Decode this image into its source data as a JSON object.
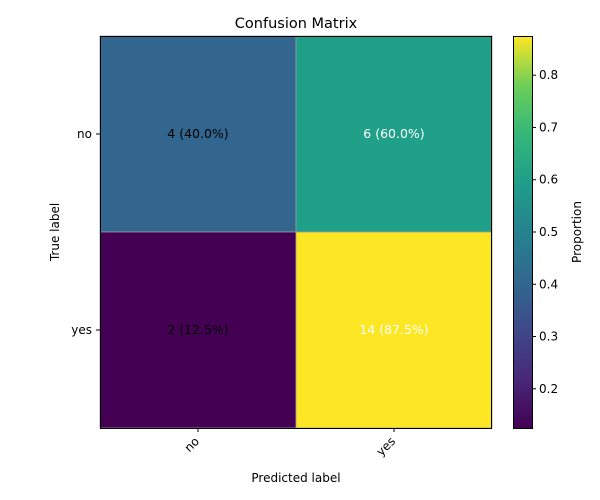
{
  "chart_data": {
    "type": "heatmap",
    "title": "Confusion Matrix",
    "xlabel": "Predicted label",
    "ylabel": "True label",
    "x_categories": [
      "no",
      "yes"
    ],
    "y_categories": [
      "no",
      "yes"
    ],
    "matrix": [
      [
        4,
        6
      ],
      [
        2,
        14
      ]
    ],
    "proportions": [
      [
        0.4,
        0.6
      ],
      [
        0.125,
        0.875
      ]
    ],
    "cell_labels": [
      [
        "4 (40.0%)",
        "6 (60.0%)"
      ],
      [
        "2 (12.5%)",
        "14 (87.5%)"
      ]
    ],
    "cell_label_colors": [
      [
        "#000000",
        "#ffffff"
      ],
      [
        "#000000",
        "#ffffff"
      ]
    ],
    "colormap": "viridis",
    "color_range": [
      0.125,
      0.875
    ],
    "colorbar": {
      "label": "Proportion",
      "ticks": [
        0.2,
        0.3,
        0.4,
        0.5,
        0.6,
        0.7,
        0.8
      ],
      "tick_labels": [
        "0.2",
        "0.3",
        "0.4",
        "0.5",
        "0.6",
        "0.7",
        "0.8"
      ]
    }
  }
}
